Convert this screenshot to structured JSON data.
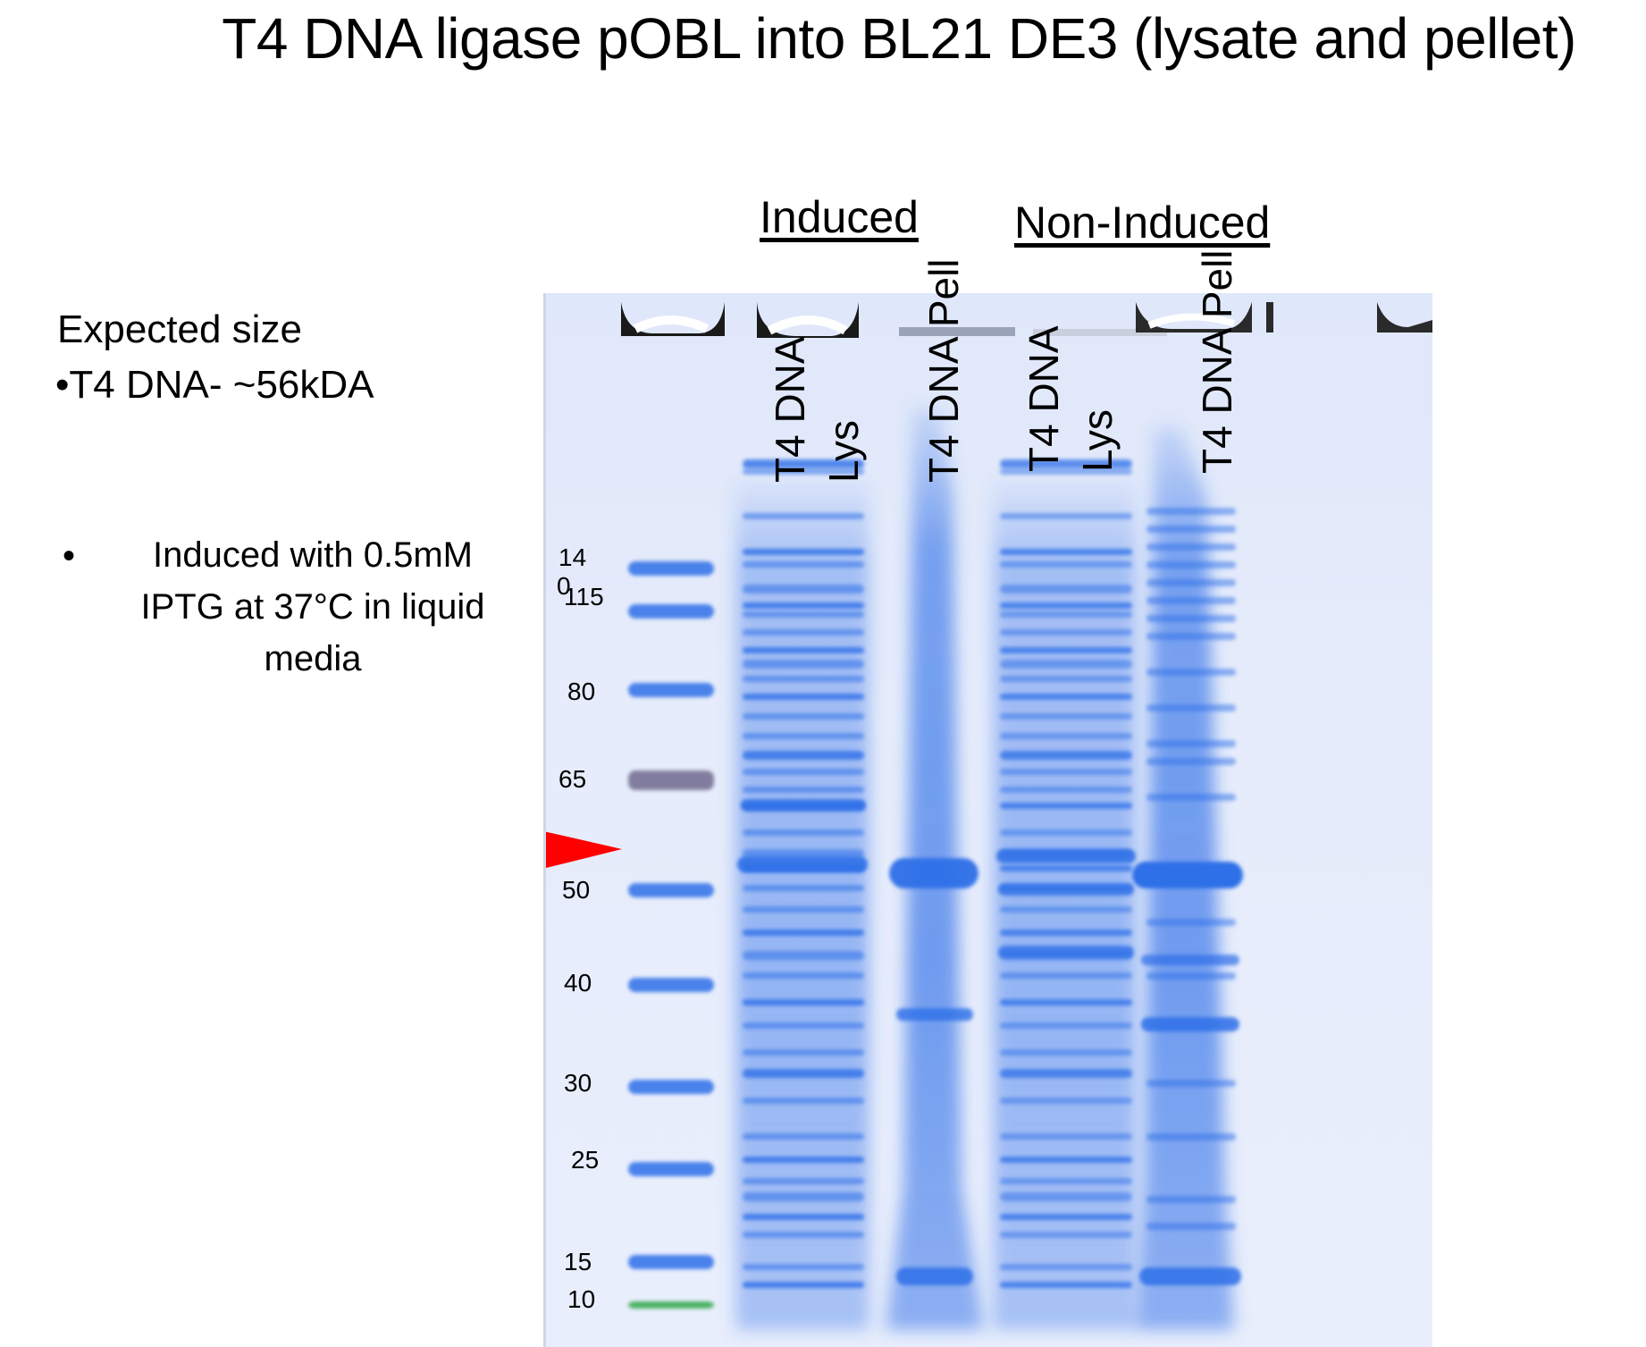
{
  "title": "T4 DNA ligase pOBL into BL21 DE3 (lysate and pellet)",
  "expected": {
    "heading": "Expected size",
    "item": "•T4 DNA- ~56kDA"
  },
  "condition": {
    "bullet": "•",
    "text": "Induced with 0.5mM IPTG at 37°C in liquid media"
  },
  "groups": {
    "induced": "Induced",
    "non_induced": "Non-Induced"
  },
  "lanes": {
    "induced_lys_line1": "T4 DNA",
    "induced_lys_line2": "Lys",
    "induced_pell": "T4 DNA Pell",
    "noninduced_lys_line1": "T4 DNA",
    "noninduced_lys_line2": "Lys",
    "noninduced_pell": "T4 DNA Pell"
  },
  "marker": {
    "label_140a": "14",
    "label_140b": "0",
    "label_115": "115",
    "label_80": "80",
    "label_65": "65",
    "label_50": "50",
    "label_40": "40",
    "label_30": "30",
    "label_25": "25",
    "label_15": "15",
    "label_10": "10",
    "marker_sizes_kda": [
      140,
      115,
      80,
      65,
      50,
      40,
      30,
      25,
      15,
      10
    ],
    "arrow_color": "#ff0000"
  },
  "colors": {
    "band": "#2f6fe8",
    "marker_65": "#6f6a8e",
    "marker_10": "#2ea84a"
  }
}
